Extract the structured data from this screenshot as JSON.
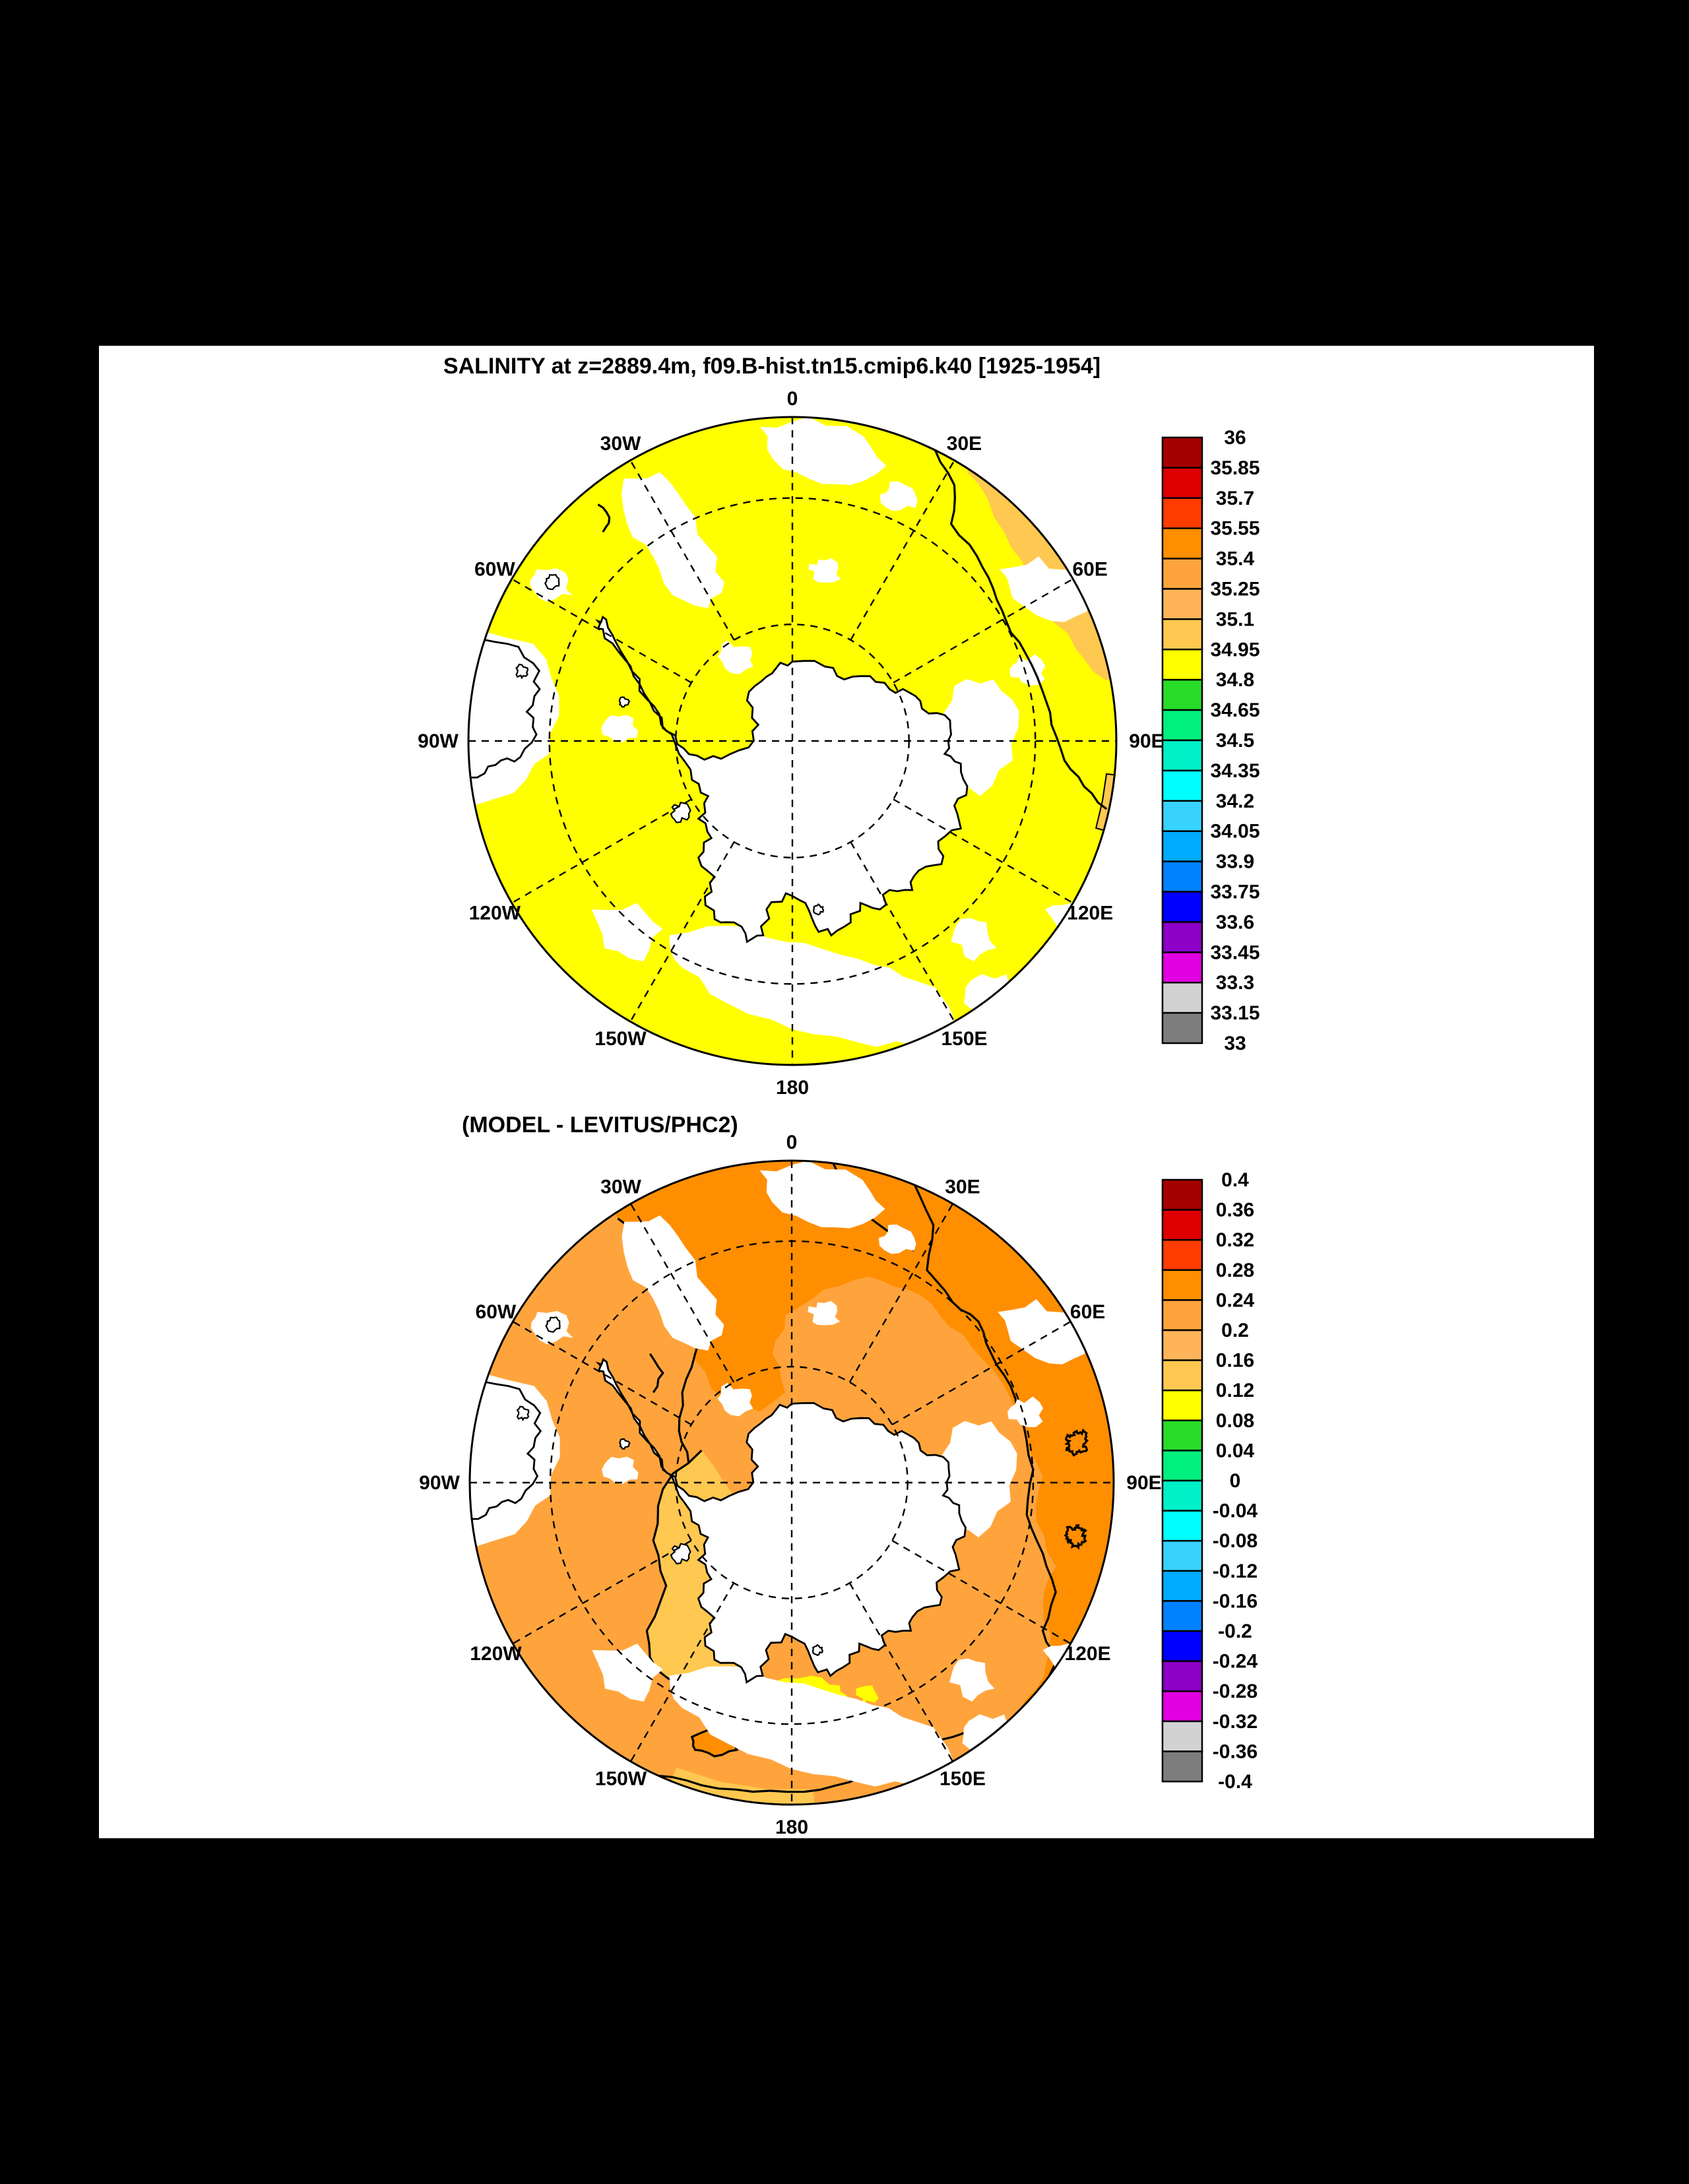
{
  "page": {
    "background": "#000000",
    "panel_background": "#FFFFFF"
  },
  "top_panel": {
    "title": "SALINITY at z=2889.4m, f09.B-hist.tn15.cmip6.k40 [1925-1954]",
    "lon_labels": [
      "0",
      "30E",
      "60E",
      "90E",
      "120E",
      "150E",
      "180",
      "150W",
      "120W",
      "90W",
      "60W",
      "30W"
    ],
    "colorbar_labels": [
      "36",
      "35.85",
      "35.7",
      "35.55",
      "35.4",
      "35.25",
      "35.1",
      "34.95",
      "34.8",
      "34.65",
      "34.5",
      "34.35",
      "34.2",
      "34.05",
      "33.9",
      "33.75",
      "33.6",
      "33.45",
      "33.3",
      "33.15",
      "33"
    ]
  },
  "bottom_panel": {
    "title": "(MODEL - LEVITUS/PHC2)",
    "lon_labels": [
      "0",
      "30E",
      "60E",
      "90E",
      "120E",
      "150E",
      "180",
      "150W",
      "120W",
      "90W",
      "60W",
      "30W"
    ],
    "colorbar_labels": [
      "0.4",
      "0.36",
      "0.32",
      "0.28",
      "0.24",
      "0.2",
      "0.16",
      "0.12",
      "0.08",
      "0.04",
      "0",
      "-0.04",
      "-0.08",
      "-0.12",
      "-0.16",
      "-0.2",
      "-0.24",
      "-0.28",
      "-0.32",
      "-0.36",
      "-0.4"
    ]
  },
  "palette_top_to_bottom": [
    "#A50000",
    "#DE0000",
    "#FF3C00",
    "#FF8E00",
    "#FFA43C",
    "#FFB45A",
    "#FFC850",
    "#FFFF00",
    "#28DC28",
    "#00F07D",
    "#00F0C8",
    "#00FFFF",
    "#38D2FF",
    "#00AAFF",
    "#0082FF",
    "#0000FF",
    "#8C00C8",
    "#E100E1",
    "#D2D2D2",
    "#7D7D7D"
  ],
  "map_colors": {
    "land": "#FFFFFF",
    "coastline": "#000000",
    "top_ocean": "#FFFF00",
    "top_patch": "#FFC850",
    "bottom_base": "#FFA43C",
    "bottom_dark": "#FF8E00",
    "bottom_gold": "#FFC850",
    "bottom_yellow": "#FFFF00"
  },
  "chart_data": [
    {
      "type": "heatmap",
      "subtype": "south-polar-stereographic-filled-contour-map",
      "title": "SALINITY at z=2889.4m, f09.B-hist.tn15.cmip6.k40 [1925-1954]",
      "region": "Southern Ocean around Antarctica",
      "longitude_labels": [
        "0",
        "30E",
        "60E",
        "90E",
        "120E",
        "150E",
        "180",
        "150W",
        "120W",
        "90W",
        "60W",
        "30W"
      ],
      "levels_desc": [
        36,
        35.85,
        35.7,
        35.55,
        35.4,
        35.25,
        35.1,
        34.95,
        34.8,
        34.65,
        34.5,
        34.35,
        34.2,
        34.05,
        33.9,
        33.75,
        33.6,
        33.45,
        33.3,
        33.15,
        33
      ],
      "colors_desc": [
        "#A50000",
        "#DE0000",
        "#FF3C00",
        "#FF8E00",
        "#FFA43C",
        "#FFB45A",
        "#FFC850",
        "#FFFF00",
        "#28DC28",
        "#00F07D",
        "#00F0C8",
        "#00FFFF",
        "#38D2FF",
        "#00AAFF",
        "#0082FF",
        "#0000FF",
        "#8C00C8",
        "#E100E1",
        "#D2D2D2",
        "#7D7D7D"
      ],
      "legend_position": "right",
      "grid": "dashed polar graticule, meridians every 30 deg, two dashed latitude circles",
      "field_summary": "Ocean salinity at 2889.4 m almost everywhere in the 34.8-34.95 bin (yellow); a 34.95-35.1 (light orange) band hugs the rim between 30E and 60E with a 35.0 contour line; white areas are Antarctica, South America tip and sea-floor shallower than 2889.4 m (no data)."
    },
    {
      "type": "heatmap",
      "subtype": "south-polar-stereographic-filled-contour-map",
      "title": "(MODEL - LEVITUS/PHC2)",
      "region": "Southern Ocean around Antarctica",
      "longitude_labels": [
        "0",
        "30E",
        "60E",
        "90E",
        "120E",
        "150E",
        "180",
        "150W",
        "120W",
        "90W",
        "60W",
        "30W"
      ],
      "levels_desc": [
        0.4,
        0.36,
        0.32,
        0.28,
        0.24,
        0.2,
        0.16,
        0.12,
        0.08,
        0.04,
        0,
        -0.04,
        -0.08,
        -0.12,
        -0.16,
        -0.2,
        -0.24,
        -0.28,
        -0.32,
        -0.36,
        -0.4
      ],
      "colors_desc": [
        "#A50000",
        "#DE0000",
        "#FF3C00",
        "#FF8E00",
        "#FFA43C",
        "#FFB45A",
        "#FFC850",
        "#FFFF00",
        "#28DC28",
        "#00F07D",
        "#00F0C8",
        "#00FFFF",
        "#38D2FF",
        "#00AAFF",
        "#0082FF",
        "#0000FF",
        "#8C00C8",
        "#E100E1",
        "#D2D2D2",
        "#7D7D7D"
      ],
      "legend_position": "right",
      "grid": "dashed polar graticule, meridians every 30 deg, two dashed latitude circles",
      "field_summary": "Model minus Levitus/PHC2 difference is positive everywhere: 0.24-0.28 (darker orange) over the Atlantic-Indian sectors and along the outer rim with closed 0.25-type contour blobs near 90E-150E; 0.2-0.24 (orange) over the Pacific sector; 0.12-0.16 (gold) band in the Bellingshausen-Amundsen-Ross sector west of the Antarctic Peninsula; small 0.08-0.12 (yellow) patch at the Ross Sea coast near 180; black contour lines outline these bands."
    }
  ]
}
